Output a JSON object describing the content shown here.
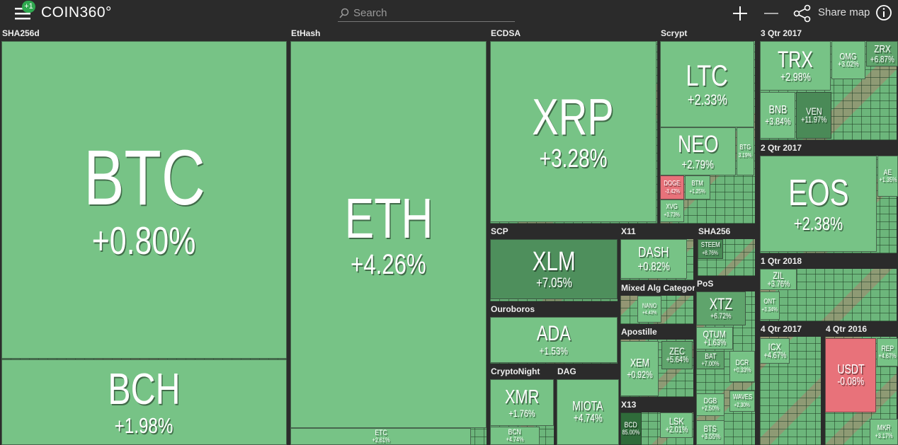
{
  "header": {
    "badge": "+1",
    "logo": "COIN360°",
    "search": "Search",
    "share": "Share map"
  },
  "sections": [
    {
      "name": "SHA256d",
      "tiles": [
        {
          "symbol": "BTC",
          "change": "+0.80%",
          "color": "#77c386"
        },
        {
          "symbol": "BCH",
          "change": "+1.98%",
          "color": "#77c386"
        }
      ]
    },
    {
      "name": "EtHash",
      "tiles": [
        {
          "symbol": "ETH",
          "change": "+4.26%",
          "color": "#77c386"
        },
        {
          "symbol": "ETC",
          "change": "+2.61%",
          "color": "#77c386"
        }
      ]
    },
    {
      "name": "ECDSA",
      "tiles": [
        {
          "symbol": "XRP",
          "change": "+3.28%",
          "color": "#77c386"
        }
      ]
    },
    {
      "name": "Scrypt",
      "tiles": [
        {
          "symbol": "LTC",
          "change": "+2.33%",
          "color": "#77c386"
        },
        {
          "symbol": "NEO",
          "change": "+2.79%",
          "color": "#77c386"
        },
        {
          "symbol": "BTG",
          "change": "3.19%",
          "color": "#77c386"
        },
        {
          "symbol": "DOGE",
          "change": "-3.42%",
          "color": "#e8727a"
        },
        {
          "symbol": "BTM",
          "change": "+1.25%",
          "color": "#77c386"
        },
        {
          "symbol": "XVG",
          "change": "+3.73%",
          "color": "#77c386"
        }
      ]
    },
    {
      "name": "3 Qtr 2017",
      "tiles": [
        {
          "symbol": "TRX",
          "change": "+2.98%",
          "color": "#77c386"
        },
        {
          "symbol": "OMG",
          "change": "+3.02%",
          "color": "#77c386"
        },
        {
          "symbol": "ZRX",
          "change": "+6.87%",
          "color": "#5fa46c"
        },
        {
          "symbol": "BNB",
          "change": "+3.84%",
          "color": "#77c386"
        },
        {
          "symbol": "VEN",
          "change": "+11.97%",
          "color": "#4a8a57"
        }
      ]
    },
    {
      "name": "2 Qtr 2017",
      "tiles": [
        {
          "symbol": "EOS",
          "change": "+2.38%",
          "color": "#77c386"
        },
        {
          "symbol": "AE",
          "change": "+1.35%",
          "color": "#77c386"
        }
      ]
    },
    {
      "name": "1 Qtr 2018",
      "tiles": [
        {
          "symbol": "ZIL",
          "change": "+3.76%",
          "color": "#77c386"
        },
        {
          "symbol": "ONT",
          "change": "+3.34%",
          "color": "#77c386"
        }
      ]
    },
    {
      "name": "4 Qtr 2017",
      "tiles": [
        {
          "symbol": "ICX",
          "change": "+4.67%",
          "color": "#77c386"
        }
      ]
    },
    {
      "name": "4 Qtr 2016",
      "tiles": [
        {
          "symbol": "USDT",
          "change": "-0.08%",
          "color": "#e8727a"
        },
        {
          "symbol": "REP",
          "change": "+4.67%",
          "color": "#77c386"
        },
        {
          "symbol": "MKR",
          "change": "+3.17%",
          "color": "#77c386"
        }
      ]
    },
    {
      "name": "SCP",
      "tiles": [
        {
          "symbol": "XLM",
          "change": "+7.05%",
          "color": "#4e8f5c"
        }
      ]
    },
    {
      "name": "X11",
      "tiles": [
        {
          "symbol": "DASH",
          "change": "+0.82%",
          "color": "#77c386"
        }
      ]
    },
    {
      "name": "SHA256",
      "tiles": [
        {
          "symbol": "STEEM",
          "change": "+8.76%",
          "color": "#4a8a57"
        }
      ]
    },
    {
      "name": "Mixed Alg Category",
      "tiles": [
        {
          "symbol": "NANO",
          "change": "+4.43%",
          "color": "#77c386"
        }
      ]
    },
    {
      "name": "PoS",
      "tiles": [
        {
          "symbol": "XTZ",
          "change": "+6.72%",
          "color": "#5fa46c"
        },
        {
          "symbol": "QTUM",
          "change": "+1.63%",
          "color": "#77c386"
        },
        {
          "symbol": "BAT",
          "change": "+7.00%",
          "color": "#5fa46c"
        },
        {
          "symbol": "DCR",
          "change": "+0.33%",
          "color": "#77c386"
        },
        {
          "symbol": "DGB",
          "change": "+2.50%",
          "color": "#77c386"
        },
        {
          "symbol": "WAVES",
          "change": "+2.30%",
          "color": "#77c386"
        },
        {
          "symbol": "BTS",
          "change": "+3.55%",
          "color": "#77c386"
        }
      ]
    },
    {
      "name": "Ouroboros",
      "tiles": [
        {
          "symbol": "ADA",
          "change": "+1.53%",
          "color": "#77c386"
        }
      ]
    },
    {
      "name": "Apostille",
      "tiles": [
        {
          "symbol": "XEM",
          "change": "+0.92%",
          "color": "#77c386"
        },
        {
          "symbol": "ZEC",
          "change": "+5.64%",
          "color": "#5fa46c"
        }
      ]
    },
    {
      "name": "CryptoNight",
      "tiles": [
        {
          "symbol": "XMR",
          "change": "+1.76%",
          "color": "#77c386"
        },
        {
          "symbol": "BCN",
          "change": "+4.74%",
          "color": "#77c386"
        }
      ]
    },
    {
      "name": "DAG",
      "tiles": [
        {
          "symbol": "MIOTA",
          "change": "+4.74%",
          "color": "#77c386"
        }
      ]
    },
    {
      "name": "X13",
      "tiles": [
        {
          "symbol": "BCD",
          "change": "85.00%",
          "color": "#2f6b3a"
        },
        {
          "symbol": "LSK",
          "change": "+2.01%",
          "color": "#77c386"
        }
      ]
    }
  ]
}
